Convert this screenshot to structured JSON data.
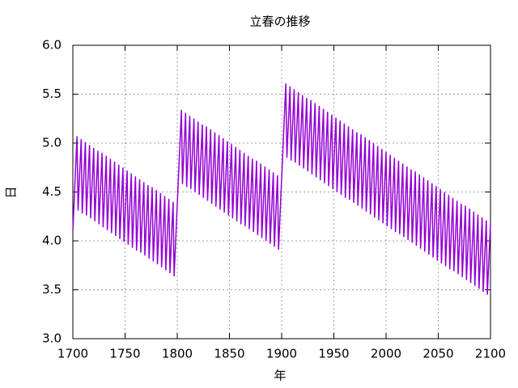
{
  "chart_data": {
    "type": "line",
    "title": "立春の推移",
    "xlabel": "年",
    "ylabel": "日",
    "color": "#9400d3",
    "grid": true,
    "xlim": [
      1700,
      2100
    ],
    "xticks": [
      1700,
      1750,
      1800,
      1850,
      1900,
      1950,
      2000,
      2050,
      2100
    ],
    "ylim": [
      3,
      6
    ],
    "yticks": [
      {
        "value": 3,
        "label": "3.0"
      },
      3.5,
      {
        "value": 4,
        "label": "4.0"
      },
      4.5,
      {
        "value": 5,
        "label": "5.0"
      },
      5.5,
      {
        "value": 6,
        "label": "6.0"
      }
    ],
    "x": [
      1700,
      1701,
      1702,
      1703,
      1704,
      1705,
      1706,
      1707,
      1708,
      1709,
      1710,
      1711,
      1712,
      1713,
      1714,
      1715,
      1716,
      1717,
      1718,
      1719,
      1720,
      1721,
      1722,
      1723,
      1724,
      1725,
      1726,
      1727,
      1728,
      1729,
      1730,
      1731,
      1732,
      1733,
      1734,
      1735,
      1736,
      1737,
      1738,
      1739,
      1740,
      1741,
      1742,
      1743,
      1744,
      1745,
      1746,
      1747,
      1748,
      1749,
      1750,
      1751,
      1752,
      1753,
      1754,
      1755,
      1756,
      1757,
      1758,
      1759,
      1760,
      1761,
      1762,
      1763,
      1764,
      1765,
      1766,
      1767,
      1768,
      1769,
      1770,
      1771,
      1772,
      1773,
      1774,
      1775,
      1776,
      1777,
      1778,
      1779,
      1780,
      1781,
      1782,
      1783,
      1784,
      1785,
      1786,
      1787,
      1788,
      1789,
      1790,
      1791,
      1792,
      1793,
      1794,
      1795,
      1796,
      1797,
      1798,
      1799,
      1800,
      1801,
      1802,
      1803,
      1804,
      1805,
      1806,
      1807,
      1808,
      1809,
      1810,
      1811,
      1812,
      1813,
      1814,
      1815,
      1816,
      1817,
      1818,
      1819,
      1820,
      1821,
      1822,
      1823,
      1824,
      1825,
      1826,
      1827,
      1828,
      1829,
      1830,
      1831,
      1832,
      1833,
      1834,
      1835,
      1836,
      1837,
      1838,
      1839,
      1840,
      1841,
      1842,
      1843,
      1844,
      1845,
      1846,
      1847,
      1848,
      1849,
      1850,
      1851,
      1852,
      1853,
      1854,
      1855,
      1856,
      1857,
      1858,
      1859,
      1860,
      1861,
      1862,
      1863,
      1864,
      1865,
      1866,
      1867,
      1868,
      1869,
      1870,
      1871,
      1872,
      1873,
      1874,
      1875,
      1876,
      1877,
      1878,
      1879,
      1880,
      1881,
      1882,
      1883,
      1884,
      1885,
      1886,
      1887,
      1888,
      1889,
      1890,
      1891,
      1892,
      1893,
      1894,
      1895,
      1896,
      1897,
      1898,
      1899,
      1900,
      1901,
      1902,
      1903,
      1904,
      1905,
      1906,
      1907,
      1908,
      1909,
      1910,
      1911,
      1912,
      1913,
      1914,
      1915,
      1916,
      1917,
      1918,
      1919,
      1920,
      1921,
      1922,
      1923,
      1924,
      1925,
      1926,
      1927,
      1928,
      1929,
      1930,
      1931,
      1932,
      1933,
      1934,
      1935,
      1936,
      1937,
      1938,
      1939,
      1940,
      1941,
      1942,
      1943,
      1944,
      1945,
      1946,
      1947,
      1948,
      1949,
      1950,
      1951,
      1952,
      1953,
      1954,
      1955,
      1956,
      1957,
      1958,
      1959,
      1960,
      1961,
      1962,
      1963,
      1964,
      1965,
      1966,
      1967,
      1968,
      1969,
      1970,
      1971,
      1972,
      1973,
      1974,
      1975,
      1976,
      1977,
      1978,
      1979,
      1980,
      1981,
      1982,
      1983,
      1984,
      1985,
      1986,
      1987,
      1988,
      1989,
      1990,
      1991,
      1992,
      1993,
      1994,
      1995,
      1996,
      1997,
      1998,
      1999,
      2000,
      2001,
      2002,
      2003,
      2004,
      2005,
      2006,
      2007,
      2008,
      2009,
      2010,
      2011,
      2012,
      2013,
      2014,
      2015,
      2016,
      2017,
      2018,
      2019,
      2020,
      2021,
      2022,
      2023,
      2024,
      2025,
      2026,
      2027,
      2028,
      2029,
      2030,
      2031,
      2032,
      2033,
      2034,
      2035,
      2036,
      2037,
      2038,
      2039,
      2040,
      2041,
      2042,
      2043,
      2044,
      2045,
      2046,
      2047,
      2048,
      2049,
      2050,
      2051,
      2052,
      2053,
      2054,
      2055,
      2056,
      2057,
      2058,
      2059,
      2060,
      2061,
      2062,
      2063,
      2064,
      2065,
      2066,
      2067,
      2068,
      2069,
      2070,
      2071,
      2072,
      2073,
      2074,
      2075,
      2076,
      2077,
      2078,
      2079,
      2080,
      2081,
      2082,
      2083,
      2084,
      2085,
      2086,
      2087,
      2088,
      2089,
      2090,
      2091,
      2092,
      2093,
      2094,
      2095,
      2096,
      2097,
      2098,
      2099,
      2100
    ],
    "values": [
      4.1,
      4.34,
      4.59,
      4.83,
      5.07,
      4.31,
      4.56,
      4.8,
      5.04,
      4.28,
      4.53,
      4.77,
      5.01,
      4.26,
      4.5,
      4.74,
      4.98,
      4.23,
      4.47,
      4.71,
      4.95,
      4.2,
      4.44,
      4.68,
      4.92,
      4.17,
      4.41,
      4.65,
      4.9,
      4.14,
      4.38,
      4.62,
      4.87,
      4.11,
      4.35,
      4.59,
      4.84,
      4.08,
      4.32,
      4.57,
      4.81,
      4.05,
      4.29,
      4.54,
      4.78,
      4.02,
      4.26,
      4.51,
      4.75,
      3.99,
      4.24,
      4.48,
      4.72,
      3.96,
      4.21,
      4.45,
      4.69,
      3.93,
      4.18,
      4.42,
      4.66,
      3.9,
      4.15,
      4.39,
      4.63,
      3.88,
      4.12,
      4.36,
      4.6,
      3.85,
      4.09,
      4.33,
      4.57,
      3.82,
      4.06,
      4.3,
      4.55,
      3.79,
      4.03,
      4.27,
      4.52,
      3.76,
      4.0,
      4.24,
      4.49,
      3.73,
      3.97,
      4.21,
      4.46,
      3.7,
      3.94,
      4.19,
      4.43,
      3.67,
      3.91,
      4.16,
      4.4,
      3.64,
      3.88,
      4.13,
      4.37,
      4.61,
      4.86,
      5.1,
      5.34,
      4.58,
      4.83,
      5.07,
      5.31,
      4.55,
      4.8,
      5.04,
      5.28,
      4.53,
      4.77,
      5.01,
      5.25,
      4.5,
      4.74,
      4.98,
      5.22,
      4.47,
      4.71,
      4.95,
      5.19,
      4.44,
      4.68,
      4.92,
      5.17,
      4.41,
      4.65,
      4.89,
      5.14,
      4.38,
      4.62,
      4.86,
      5.11,
      4.35,
      4.59,
      4.84,
      5.08,
      4.32,
      4.56,
      4.81,
      5.05,
      4.29,
      4.53,
      4.78,
      5.02,
      4.26,
      4.51,
      4.75,
      4.99,
      4.23,
      4.48,
      4.72,
      4.96,
      4.2,
      4.45,
      4.69,
      4.93,
      4.17,
      4.42,
      4.66,
      4.9,
      4.15,
      4.39,
      4.63,
      4.87,
      4.12,
      4.36,
      4.6,
      4.84,
      4.09,
      4.33,
      4.57,
      4.82,
      4.06,
      4.3,
      4.54,
      4.79,
      4.03,
      4.27,
      4.51,
      4.76,
      4.0,
      4.24,
      4.48,
      4.73,
      3.97,
      4.21,
      4.46,
      4.7,
      3.94,
      4.18,
      4.43,
      4.67,
      3.91,
      4.15,
      4.4,
      4.64,
      4.88,
      5.13,
      5.37,
      5.61,
      4.85,
      5.1,
      5.34,
      5.58,
      4.82,
      5.07,
      5.31,
      5.55,
      4.8,
      5.04,
      5.28,
      5.52,
      4.77,
      5.01,
      5.25,
      5.49,
      4.74,
      4.98,
      5.22,
      5.46,
      4.71,
      4.95,
      5.19,
      5.44,
      4.68,
      4.92,
      5.16,
      5.41,
      4.65,
      4.89,
      5.13,
      5.38,
      4.62,
      4.86,
      5.11,
      5.35,
      4.59,
      4.83,
      5.08,
      5.32,
      4.56,
      4.8,
      5.05,
      5.29,
      4.53,
      4.78,
      5.02,
      5.26,
      4.5,
      4.75,
      4.99,
      5.23,
      4.47,
      4.72,
      4.96,
      5.2,
      4.44,
      4.69,
      4.93,
      5.17,
      4.42,
      4.66,
      4.9,
      5.14,
      4.39,
      4.63,
      4.87,
      5.11,
      4.36,
      4.6,
      4.84,
      5.09,
      4.33,
      4.57,
      4.81,
      5.06,
      4.3,
      4.54,
      4.78,
      5.03,
      4.27,
      4.51,
      4.75,
      5.0,
      4.24,
      4.48,
      4.73,
      4.97,
      4.21,
      4.45,
      4.7,
      4.94,
      4.18,
      4.42,
      4.67,
      4.91,
      4.15,
      4.4,
      4.64,
      4.88,
      4.12,
      4.37,
      4.61,
      4.85,
      4.09,
      4.34,
      4.58,
      4.82,
      4.07,
      4.31,
      4.55,
      4.79,
      4.04,
      4.28,
      4.52,
      4.76,
      4.01,
      4.25,
      4.49,
      4.73,
      3.98,
      4.22,
      4.46,
      4.71,
      3.95,
      4.19,
      4.43,
      4.68,
      3.92,
      4.16,
      4.4,
      4.65,
      3.89,
      4.13,
      4.38,
      4.62,
      3.86,
      4.1,
      4.35,
      4.59,
      3.83,
      4.07,
      4.32,
      4.56,
      3.8,
      4.05,
      4.29,
      4.53,
      3.77,
      4.02,
      4.26,
      4.5,
      3.74,
      3.99,
      4.23,
      4.47,
      3.71,
      3.96,
      4.2,
      4.44,
      3.69,
      3.93,
      4.17,
      4.41,
      3.66,
      3.9,
      4.14,
      4.38,
      3.63,
      3.87,
      4.11,
      4.36,
      3.6,
      3.84,
      4.08,
      4.33,
      3.57,
      3.81,
      4.05,
      4.3,
      3.54,
      3.78,
      4.02,
      4.27,
      3.51,
      3.75,
      4.0,
      4.24,
      3.48,
      3.72,
      3.97,
      4.21,
      3.45,
      3.69,
      3.94,
      4.18
    ]
  }
}
